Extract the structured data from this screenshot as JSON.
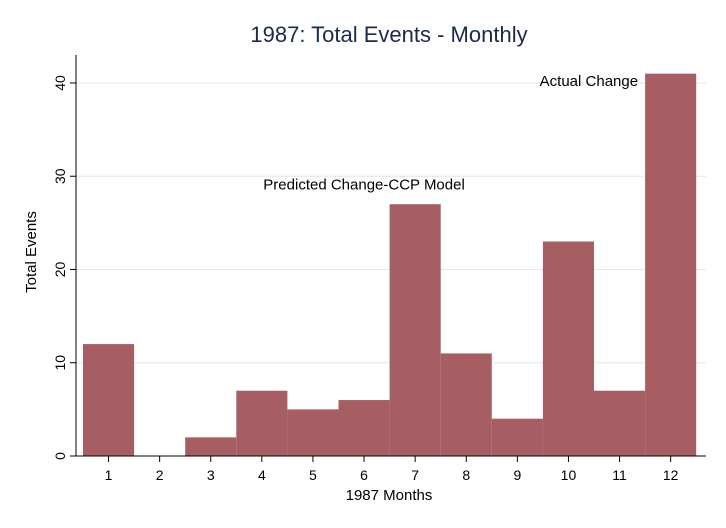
{
  "chart_data": {
    "type": "bar",
    "title": "1987: Total Events - Monthly",
    "xlabel": "1987 Months",
    "ylabel": "Total Events",
    "categories": [
      "1",
      "2",
      "3",
      "4",
      "5",
      "6",
      "7",
      "8",
      "9",
      "10",
      "11",
      "12"
    ],
    "values": [
      12,
      0,
      2,
      7,
      5,
      6,
      27,
      11,
      4,
      23,
      7,
      41
    ],
    "ylim": [
      0,
      43
    ],
    "yticks": [
      0,
      10,
      20,
      30,
      40
    ],
    "grid": true,
    "bar_color": "#a65e63",
    "grid_color": "#e6e6e6",
    "title_color": "#1a2a4f",
    "annotations": [
      {
        "text": "Predicted Change-CCP Model",
        "x": 6.0,
        "y": 28.6
      },
      {
        "text": "Actual Change",
        "x": 10.4,
        "y": 39.7
      }
    ]
  }
}
